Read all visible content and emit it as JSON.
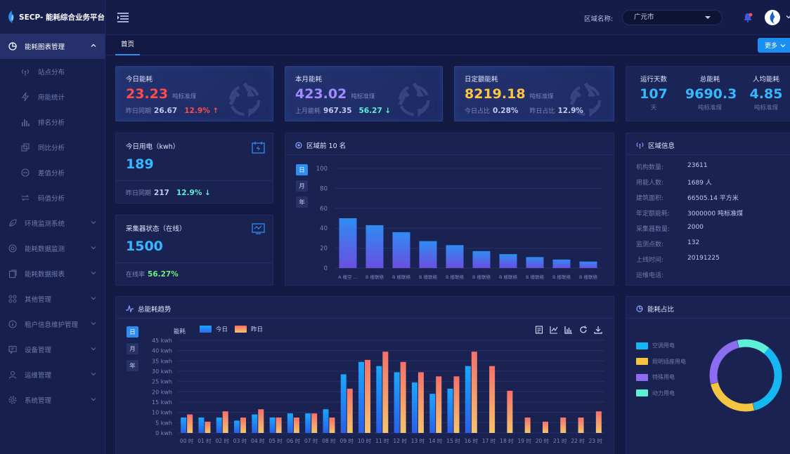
{
  "app": {
    "title": "SECP- 能耗综合业务平台"
  },
  "sidebar": {
    "items": [
      {
        "label": "能耗图表管理"
      },
      {
        "label": "站点分布"
      },
      {
        "label": "用能统计"
      },
      {
        "label": "排名分析"
      },
      {
        "label": "同比分析"
      },
      {
        "label": "差值分析"
      },
      {
        "label": "码值分析"
      },
      {
        "label": "环境监测系统"
      },
      {
        "label": "能耗数据监测"
      },
      {
        "label": "能耗数据报表"
      },
      {
        "label": "其他管理"
      },
      {
        "label": "租户信息维护管理"
      },
      {
        "label": "设备管理"
      },
      {
        "label": "运维管理"
      },
      {
        "label": "系统管理"
      }
    ]
  },
  "header": {
    "region_label": "区域名称:",
    "region_value": "广元市"
  },
  "tabs": {
    "home": "首页",
    "more": "更多"
  },
  "kpi_today": {
    "title": "今日能耗",
    "value": "23.23",
    "unit": "吨标准煤",
    "foot_label": "昨日同期",
    "foot_value": "26.67",
    "change": "12.9% ↑"
  },
  "kpi_month": {
    "title": "本月能耗",
    "value": "423.02",
    "unit": "吨标准煤",
    "foot_label": "上月能耗",
    "foot_value": "967.35",
    "change": "56.27 ↓"
  },
  "kpi_quota": {
    "title": "日定额能耗",
    "value": "8219.18",
    "unit": "吨标准煤",
    "foot_label1": "今日占比",
    "foot_value1": "0.28%",
    "foot_label2": "昨日占比",
    "foot_value2": "12.9%"
  },
  "kpi_summary": {
    "items": [
      {
        "title": "运行天数",
        "value": "107",
        "unit": "天"
      },
      {
        "title": "总能耗",
        "value": "9690.3",
        "unit": "吨标准煤"
      },
      {
        "title": "人均能耗",
        "value": "4.85",
        "unit": "吨标准煤"
      }
    ]
  },
  "power": {
    "title": "今日用电（kwh）",
    "value": "189",
    "foot_label": "昨日同期",
    "foot_value": "217",
    "change": "12.9% ↓"
  },
  "collector": {
    "title": "采集器状态（在线）",
    "value": "1500",
    "foot_label": "在线率",
    "foot_value": "56.27%"
  },
  "top10": {
    "title": "区域前 10 名",
    "periods": [
      "日",
      "月",
      "年"
    ],
    "chart_data": {
      "type": "bar",
      "categories": [
        "A 楼空 ...",
        "B 楼联络",
        "B 楼联络",
        "B 楼联络",
        "B 楼联络",
        "B 楼联络",
        "B 楼联络",
        "B 楼联络",
        "B 楼联络",
        "B 楼联络"
      ],
      "values": [
        50,
        43,
        36,
        27,
        23,
        17,
        14,
        11,
        8.5,
        6.5
      ],
      "ylim": [
        0,
        100
      ],
      "yticks": [
        0,
        20,
        40,
        60,
        80,
        100
      ]
    }
  },
  "region_info": {
    "title": "区域信息",
    "rows": [
      {
        "label": "机构数量:",
        "value": "23611"
      },
      {
        "label": "用能人数:",
        "value": "1689 人"
      },
      {
        "label": "建筑面积:",
        "value": "66505.14 平方米"
      },
      {
        "label": "年定额能耗:",
        "value": "3000000 吨标准煤"
      },
      {
        "label": "采集器数量:",
        "value": "2000"
      },
      {
        "label": "监测点数:",
        "value": "132"
      },
      {
        "label": "上线时间:",
        "value": "20191225"
      },
      {
        "label": "运维电话:",
        "value": ""
      }
    ]
  },
  "trend": {
    "title": "总能耗趋势",
    "periods": [
      "日",
      "月",
      "年"
    ],
    "chart_data": {
      "type": "bar",
      "ylabel": "能耗",
      "ylim": [
        0,
        45
      ],
      "yticks": [
        "0 kwh",
        "5 kwh",
        "10 kwh",
        "15 kwh",
        "20 kwh",
        "25 kwh",
        "30 kwh",
        "35 kwh",
        "40 kwh",
        "45 kwh"
      ],
      "categories": [
        "00 时",
        "01 时",
        "02 时",
        "03 时",
        "04 时",
        "05 时",
        "06 时",
        "07 时",
        "08 时",
        "09 时",
        "10 时",
        "11 时",
        "12 时",
        "13 时",
        "14 时",
        "15 时",
        "16 时",
        "17 时",
        "18 时",
        "19 时",
        "20 时",
        "21 时",
        "22 时",
        "23 时"
      ],
      "series": [
        {
          "name": "今日",
          "color": "#1e96f0",
          "values": [
            7.5,
            7.5,
            7.5,
            6,
            9,
            7.5,
            9.5,
            9.5,
            11.5,
            28.5,
            34.5,
            32.5,
            29.5,
            24.5,
            19,
            21.5,
            32.5,
            null,
            null,
            null,
            null,
            null,
            null,
            null
          ]
        },
        {
          "name": "昨日",
          "color": "#f47d63",
          "values": [
            9,
            5.5,
            10.5,
            7.5,
            11.5,
            7.5,
            7.5,
            9.5,
            7.5,
            21.5,
            35.5,
            39.5,
            34.5,
            29.5,
            27.5,
            27.5,
            39.5,
            32.5,
            20.5,
            7.5,
            5.5,
            7.5,
            7.5,
            10.5
          ]
        }
      ]
    },
    "toolbar": [
      "data-view-icon",
      "line-chart-icon",
      "bar-chart-icon",
      "refresh-icon",
      "download-icon"
    ]
  },
  "ratio": {
    "title": "能耗占比",
    "chart_data": {
      "type": "pie",
      "categories": [
        "空调用电",
        "照明插座用电",
        "特殊用电",
        "动力用电"
      ],
      "values": [
        35,
        25,
        25,
        15
      ],
      "colors": [
        "#16b6f2",
        "#f5c542",
        "#8c6df2",
        "#5ef0d6"
      ]
    }
  }
}
